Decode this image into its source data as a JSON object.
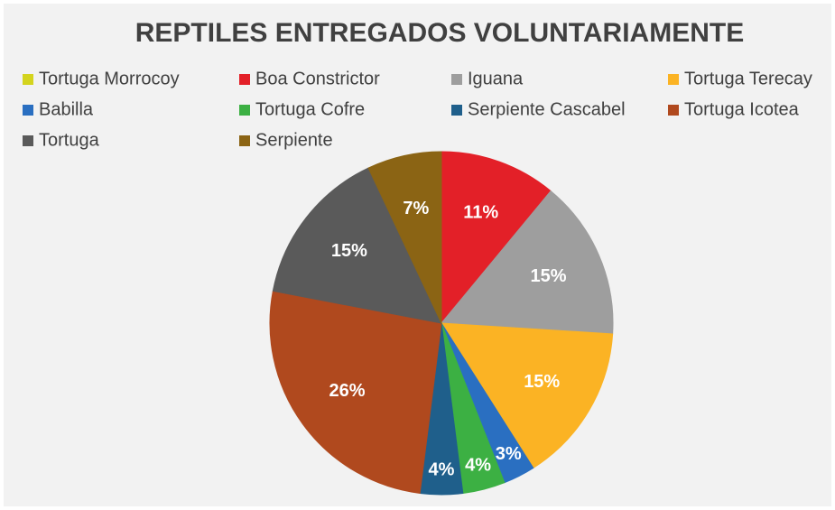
{
  "chart_data": {
    "type": "pie",
    "title": "REPTILES ENTREGADOS VOLUNTARIAMENTE",
    "categories": [
      "Tortuga Morrocoy",
      "Boa Constrictor",
      "Iguana",
      "Tortuga Terecay",
      "Babilla",
      "Tortuga Cofre",
      "Serpiente Cascabel",
      "Tortuga Icotea",
      "Tortuga",
      "Serpiente"
    ],
    "values": [
      0,
      11,
      15,
      15,
      3,
      4,
      4,
      26,
      15,
      7
    ],
    "value_labels": [
      null,
      "11%",
      "15%",
      "15%",
      "3%",
      "4%",
      "4%",
      "26%",
      "15%",
      "7%"
    ],
    "colors": [
      "#d4d41e",
      "#e32028",
      "#9e9e9e",
      "#fbb324",
      "#2a6fc1",
      "#3cb043",
      "#1f5f8b",
      "#b0491e",
      "#5a5a5a",
      "#8b6414"
    ],
    "legend": "top"
  }
}
